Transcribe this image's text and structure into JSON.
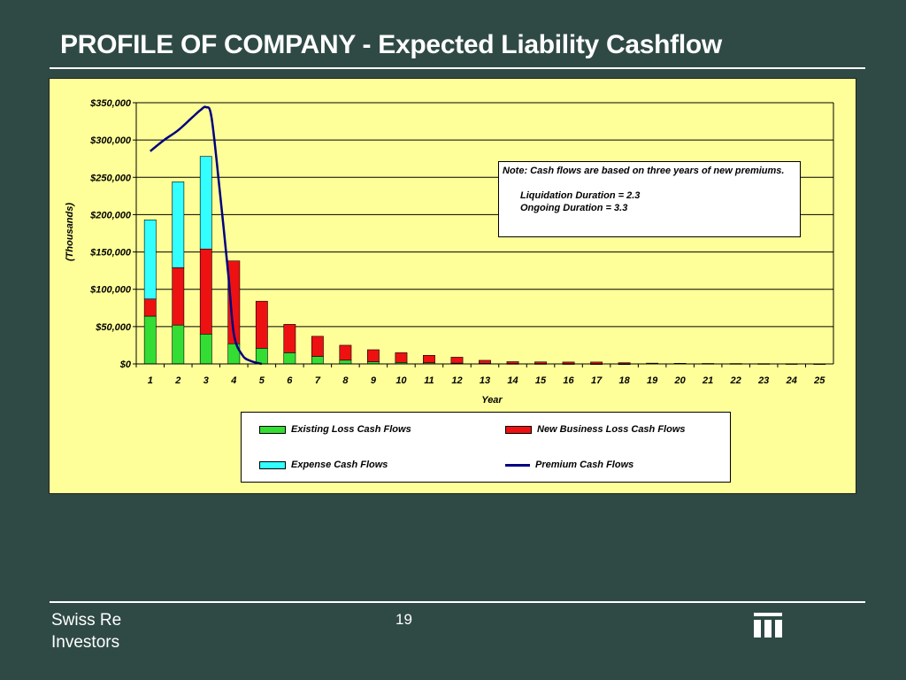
{
  "slide": {
    "title": "PROFILE OF COMPANY - Expected Liability Cashflow",
    "footer_company": "Swiss Re",
    "footer_sub": "Investors",
    "page_number": "19",
    "logo_icon": "swiss-re-logo"
  },
  "note": {
    "line1": "Note:  Cash flows are based on three years of new premiums.",
    "line2": "Liquidation Duration  =  2.3",
    "line3": "Ongoing Duration       =  3.3"
  },
  "chart_data": {
    "type": "bar",
    "stacked": true,
    "xlabel": "Year",
    "ylabel": "(Thousands)",
    "ylim": [
      0,
      350000
    ],
    "yticks": [
      0,
      50000,
      100000,
      150000,
      200000,
      250000,
      300000,
      350000
    ],
    "ytick_labels": [
      "$0",
      "$50,000",
      "$100,000",
      "$150,000",
      "$200,000",
      "$250,000",
      "$300,000",
      "$350,000"
    ],
    "grid": true,
    "legend_position": "bottom",
    "categories": [
      "1",
      "2",
      "3",
      "4",
      "5",
      "6",
      "7",
      "8",
      "9",
      "10",
      "11",
      "12",
      "13",
      "14",
      "15",
      "16",
      "17",
      "18",
      "19",
      "20",
      "21",
      "22",
      "23",
      "24",
      "25"
    ],
    "series": [
      {
        "name": "Existing Loss Cash Flows",
        "kind": "bar",
        "color": "#33dd33",
        "values": [
          64000,
          52000,
          40000,
          27000,
          21000,
          15000,
          10000,
          5000,
          3000,
          2000,
          1500,
          1000,
          800,
          500,
          400,
          300,
          200,
          100,
          0,
          0,
          0,
          0,
          0,
          0,
          0
        ]
      },
      {
        "name": "New Business Loss Cash Flows",
        "kind": "bar",
        "color": "#ee1111",
        "values": [
          23000,
          77000,
          114000,
          111000,
          63000,
          38000,
          27000,
          20000,
          16000,
          13000,
          10000,
          8000,
          4000,
          2500,
          2300,
          2200,
          2300,
          1500,
          1000,
          800,
          600,
          500,
          400,
          300,
          200
        ]
      },
      {
        "name": "Expense Cash Flows",
        "kind": "bar",
        "color": "#33ffff",
        "values": [
          106000,
          115000,
          124000,
          0,
          0,
          0,
          0,
          0,
          0,
          0,
          0,
          0,
          0,
          0,
          0,
          0,
          0,
          0,
          0,
          0,
          0,
          0,
          0,
          0,
          0
        ]
      },
      {
        "name": "Premium Cash Flows",
        "kind": "line",
        "color": "#000080",
        "x": [
          1,
          1.5,
          2,
          2.5,
          2.8,
          3,
          3.2,
          3.5,
          3.8,
          4,
          4.3,
          4.6,
          5
        ],
        "values": [
          285000,
          300000,
          313000,
          330000,
          340000,
          344000,
          330000,
          230000,
          120000,
          40000,
          12000,
          4000,
          0
        ]
      }
    ]
  }
}
